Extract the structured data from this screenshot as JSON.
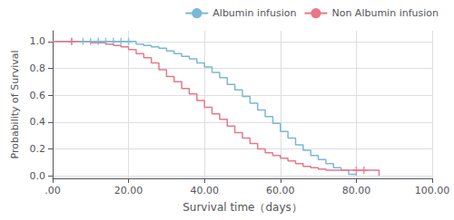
{
  "chart_data": {
    "type": "step",
    "xlabel": "Survival time（days）",
    "ylabel": "Probability of Survival",
    "xlim": [
      0,
      100
    ],
    "ylim": [
      -0.02,
      1.08
    ],
    "xticks": [
      {
        "value": 0,
        "label": ".00"
      },
      {
        "value": 20,
        "label": "20.00"
      },
      {
        "value": 40,
        "label": "40.00"
      },
      {
        "value": 60,
        "label": "60.00"
      },
      {
        "value": 80,
        "label": "80.00"
      },
      {
        "value": 100,
        "label": "100.00"
      }
    ],
    "yticks": [
      {
        "value": 0.0,
        "label": "0.0"
      },
      {
        "value": 0.2,
        "label": "0.2"
      },
      {
        "value": 0.4,
        "label": "0.4"
      },
      {
        "value": 0.6,
        "label": "0.6"
      },
      {
        "value": 0.8,
        "label": "0.8"
      },
      {
        "value": 1.0,
        "label": "1.0"
      }
    ],
    "grid": true,
    "legend": "upper right",
    "series": [
      {
        "name": "Albumin infusion",
        "color": "#7ab8d8",
        "x": [
          0,
          20,
          22,
          24,
          26,
          28,
          30,
          32,
          34,
          36,
          38,
          40,
          42,
          44,
          46,
          48,
          50,
          52,
          54,
          56,
          58,
          60,
          62,
          64,
          66,
          68,
          70,
          72,
          74,
          76,
          78,
          80
        ],
        "values": [
          1.0,
          1.0,
          0.98,
          0.97,
          0.96,
          0.95,
          0.93,
          0.91,
          0.89,
          0.87,
          0.84,
          0.81,
          0.77,
          0.73,
          0.68,
          0.64,
          0.59,
          0.54,
          0.49,
          0.44,
          0.39,
          0.33,
          0.28,
          0.23,
          0.19,
          0.15,
          0.12,
          0.09,
          0.06,
          0.04,
          0.01,
          0.0
        ],
        "marker": "+",
        "censor_x": [
          5,
          8,
          10,
          12,
          14,
          16,
          18,
          20
        ],
        "censor_values": [
          1.0,
          1.0,
          1.0,
          1.0,
          1.0,
          1.0,
          1.0,
          1.0
        ]
      },
      {
        "name": "Non Albumin infusion",
        "color": "#e8788a",
        "x": [
          0,
          10,
          14,
          16,
          18,
          20,
          22,
          24,
          26,
          28,
          30,
          32,
          34,
          36,
          38,
          40,
          42,
          44,
          46,
          48,
          50,
          52,
          54,
          56,
          58,
          60,
          62,
          64,
          66,
          68,
          70,
          72,
          74,
          76,
          78,
          80,
          82,
          84,
          86
        ],
        "values": [
          1.0,
          0.99,
          0.98,
          0.97,
          0.96,
          0.94,
          0.91,
          0.88,
          0.84,
          0.79,
          0.74,
          0.7,
          0.65,
          0.61,
          0.56,
          0.51,
          0.46,
          0.42,
          0.37,
          0.32,
          0.28,
          0.24,
          0.2,
          0.17,
          0.15,
          0.13,
          0.11,
          0.09,
          0.07,
          0.06,
          0.05,
          0.04,
          0.04,
          0.04,
          0.04,
          0.04,
          0.04,
          0.04,
          0.0
        ],
        "marker": "+",
        "censor_x": [
          5,
          80,
          82
        ],
        "censor_values": [
          1.0,
          0.04,
          0.04
        ]
      }
    ]
  }
}
